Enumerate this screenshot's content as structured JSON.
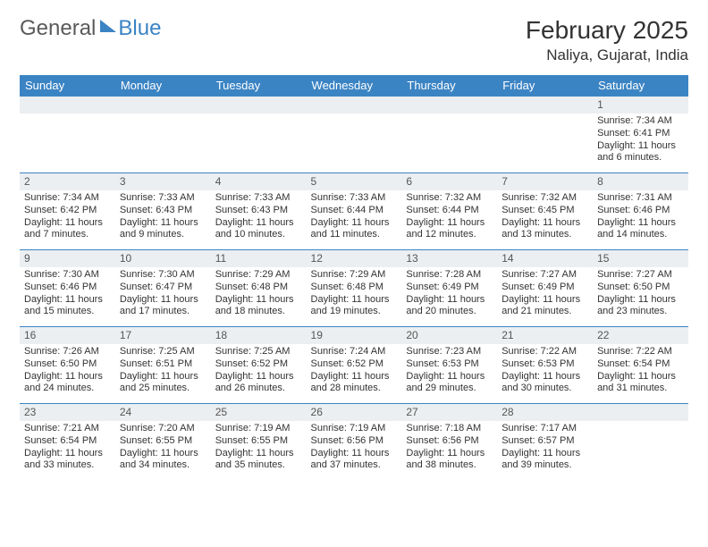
{
  "brand": {
    "part1": "General",
    "part2": "Blue"
  },
  "title": "February 2025",
  "location": "Naliya, Gujarat, India",
  "colors": {
    "header_bg": "#3b84c4",
    "header_text": "#ffffff",
    "cell_border": "#3b84c4",
    "daynum_bg": "#eceff1",
    "body_bg": "#ffffff",
    "text": "#333333"
  },
  "weekdays": [
    "Sunday",
    "Monday",
    "Tuesday",
    "Wednesday",
    "Thursday",
    "Friday",
    "Saturday"
  ],
  "first_weekday_index": 6,
  "days": [
    {
      "n": 1,
      "sunrise": "7:34 AM",
      "sunset": "6:41 PM",
      "daylight": "11 hours and 6 minutes."
    },
    {
      "n": 2,
      "sunrise": "7:34 AM",
      "sunset": "6:42 PM",
      "daylight": "11 hours and 7 minutes."
    },
    {
      "n": 3,
      "sunrise": "7:33 AM",
      "sunset": "6:43 PM",
      "daylight": "11 hours and 9 minutes."
    },
    {
      "n": 4,
      "sunrise": "7:33 AM",
      "sunset": "6:43 PM",
      "daylight": "11 hours and 10 minutes."
    },
    {
      "n": 5,
      "sunrise": "7:33 AM",
      "sunset": "6:44 PM",
      "daylight": "11 hours and 11 minutes."
    },
    {
      "n": 6,
      "sunrise": "7:32 AM",
      "sunset": "6:44 PM",
      "daylight": "11 hours and 12 minutes."
    },
    {
      "n": 7,
      "sunrise": "7:32 AM",
      "sunset": "6:45 PM",
      "daylight": "11 hours and 13 minutes."
    },
    {
      "n": 8,
      "sunrise": "7:31 AM",
      "sunset": "6:46 PM",
      "daylight": "11 hours and 14 minutes."
    },
    {
      "n": 9,
      "sunrise": "7:30 AM",
      "sunset": "6:46 PM",
      "daylight": "11 hours and 15 minutes."
    },
    {
      "n": 10,
      "sunrise": "7:30 AM",
      "sunset": "6:47 PM",
      "daylight": "11 hours and 17 minutes."
    },
    {
      "n": 11,
      "sunrise": "7:29 AM",
      "sunset": "6:48 PM",
      "daylight": "11 hours and 18 minutes."
    },
    {
      "n": 12,
      "sunrise": "7:29 AM",
      "sunset": "6:48 PM",
      "daylight": "11 hours and 19 minutes."
    },
    {
      "n": 13,
      "sunrise": "7:28 AM",
      "sunset": "6:49 PM",
      "daylight": "11 hours and 20 minutes."
    },
    {
      "n": 14,
      "sunrise": "7:27 AM",
      "sunset": "6:49 PM",
      "daylight": "11 hours and 21 minutes."
    },
    {
      "n": 15,
      "sunrise": "7:27 AM",
      "sunset": "6:50 PM",
      "daylight": "11 hours and 23 minutes."
    },
    {
      "n": 16,
      "sunrise": "7:26 AM",
      "sunset": "6:50 PM",
      "daylight": "11 hours and 24 minutes."
    },
    {
      "n": 17,
      "sunrise": "7:25 AM",
      "sunset": "6:51 PM",
      "daylight": "11 hours and 25 minutes."
    },
    {
      "n": 18,
      "sunrise": "7:25 AM",
      "sunset": "6:52 PM",
      "daylight": "11 hours and 26 minutes."
    },
    {
      "n": 19,
      "sunrise": "7:24 AM",
      "sunset": "6:52 PM",
      "daylight": "11 hours and 28 minutes."
    },
    {
      "n": 20,
      "sunrise": "7:23 AM",
      "sunset": "6:53 PM",
      "daylight": "11 hours and 29 minutes."
    },
    {
      "n": 21,
      "sunrise": "7:22 AM",
      "sunset": "6:53 PM",
      "daylight": "11 hours and 30 minutes."
    },
    {
      "n": 22,
      "sunrise": "7:22 AM",
      "sunset": "6:54 PM",
      "daylight": "11 hours and 31 minutes."
    },
    {
      "n": 23,
      "sunrise": "7:21 AM",
      "sunset": "6:54 PM",
      "daylight": "11 hours and 33 minutes."
    },
    {
      "n": 24,
      "sunrise": "7:20 AM",
      "sunset": "6:55 PM",
      "daylight": "11 hours and 34 minutes."
    },
    {
      "n": 25,
      "sunrise": "7:19 AM",
      "sunset": "6:55 PM",
      "daylight": "11 hours and 35 minutes."
    },
    {
      "n": 26,
      "sunrise": "7:19 AM",
      "sunset": "6:56 PM",
      "daylight": "11 hours and 37 minutes."
    },
    {
      "n": 27,
      "sunrise": "7:18 AM",
      "sunset": "6:56 PM",
      "daylight": "11 hours and 38 minutes."
    },
    {
      "n": 28,
      "sunrise": "7:17 AM",
      "sunset": "6:57 PM",
      "daylight": "11 hours and 39 minutes."
    }
  ],
  "labels": {
    "sunrise": "Sunrise: ",
    "sunset": "Sunset: ",
    "daylight": "Daylight: "
  }
}
